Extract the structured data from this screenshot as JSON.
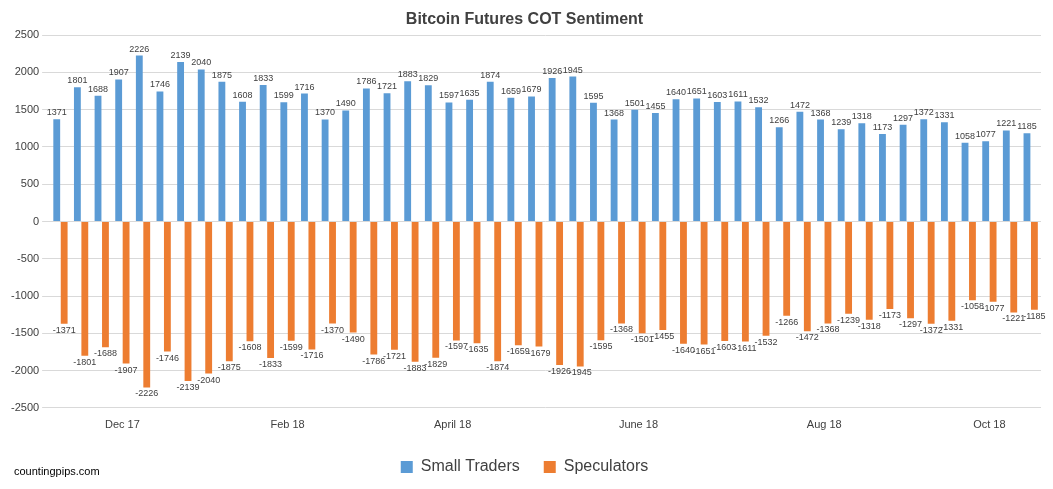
{
  "chart_data": {
    "type": "bar",
    "title": "Bitcoin Futures COT Sentiment",
    "annotations": [
      "countingpips.com"
    ],
    "categories": [
      null,
      null,
      null,
      "Dec 17",
      null,
      null,
      null,
      null,
      null,
      null,
      null,
      "Feb 18",
      null,
      null,
      null,
      null,
      null,
      null,
      null,
      "April 18",
      null,
      null,
      null,
      null,
      null,
      null,
      null,
      null,
      "June 18",
      null,
      null,
      null,
      null,
      null,
      null,
      null,
      null,
      "Aug 18",
      null,
      null,
      null,
      null,
      null,
      null,
      null,
      "Oct 18",
      null,
      null
    ],
    "series": [
      {
        "name": "Small Traders",
        "color": "#5b9bd5",
        "values": [
          1371,
          1801,
          1688,
          1907,
          2226,
          1746,
          2139,
          2040,
          1875,
          1608,
          1833,
          1599,
          1716,
          1370,
          1490,
          1786,
          1721,
          1883,
          1829,
          1597,
          1635,
          1874,
          1659,
          1679,
          1926,
          1945,
          1595,
          1368,
          1501,
          1455,
          1640,
          1651,
          1603,
          1611,
          1532,
          1266,
          1472,
          1368,
          1239,
          1318,
          1173,
          1297,
          1372,
          1331,
          1058,
          1077,
          1221,
          1185
        ]
      },
      {
        "name": "Speculators",
        "color": "#ed7d31",
        "values": [
          -1371,
          -1801,
          -1688,
          -1907,
          -2226,
          -1746,
          -2139,
          -2040,
          -1875,
          -1608,
          -1833,
          -1599,
          -1716,
          -1370,
          -1490,
          -1786,
          -1721,
          -1883,
          -1829,
          -1597,
          -1635,
          -1874,
          -1659,
          -1679,
          -1926,
          -1945,
          -1595,
          -1368,
          -1501,
          -1455,
          -1640,
          -1651,
          -1603,
          -1611,
          -1532,
          -1266,
          -1472,
          -1368,
          -1239,
          -1318,
          -1173,
          -1297,
          -1372,
          -1331,
          -1058,
          -1077,
          -1221,
          -1185
        ]
      }
    ],
    "ylim": [
      -2500,
      2500
    ],
    "yticks": [
      -2500,
      -2000,
      -1500,
      -1000,
      -500,
      0,
      500,
      1000,
      1500,
      2000,
      2500
    ],
    "grid": true,
    "legend": "bottom",
    "data_labels": true
  }
}
